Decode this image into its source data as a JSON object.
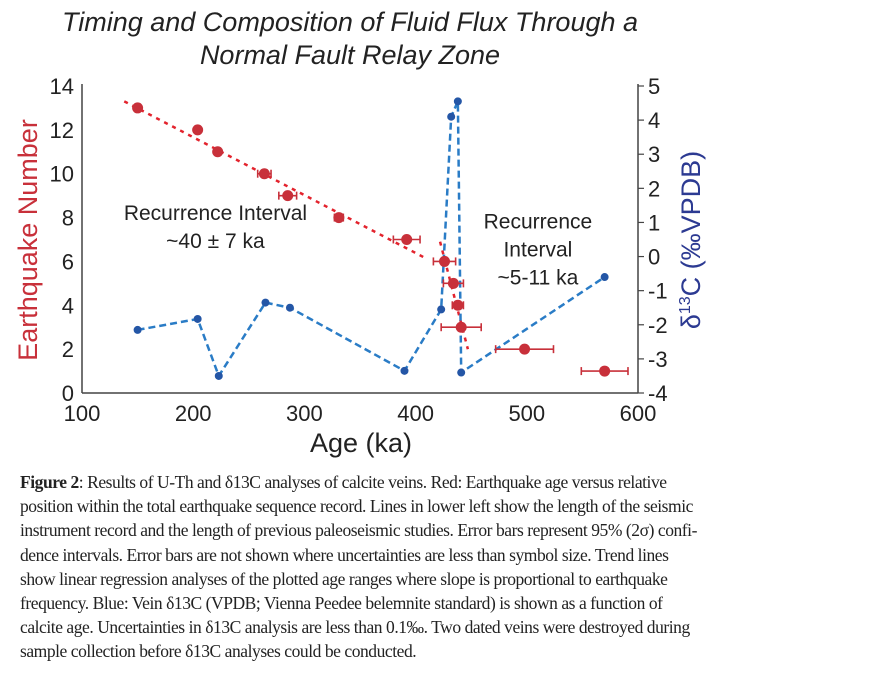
{
  "chart_data": {
    "type": "scatter",
    "title": "Timing and Composition of Fluid Flux Through a Normal Fault Relay Zone",
    "title_lines": [
      "Timing and Composition of Fluid Flux Through a",
      "Normal Fault Relay Zone"
    ],
    "xlabel": "Age (ka)",
    "ylabel": "Earthquake Number",
    "y2label": "δ13C (‰VPDB)",
    "y2label_parts": {
      "delta": "δ",
      "sup": "13",
      "rest": "C (‰VPDB)"
    },
    "xlim": [
      100,
      600
    ],
    "ylim": [
      0,
      14
    ],
    "y2lim": [
      -4,
      5
    ],
    "xticks": [
      "100",
      "200",
      "300",
      "400",
      "500",
      "600"
    ],
    "yticks": [
      "0",
      "2",
      "4",
      "6",
      "8",
      "10",
      "12",
      "14"
    ],
    "y2ticks": [
      "-4",
      "-3",
      "-2",
      "-1",
      "0",
      "1",
      "2",
      "3",
      "4",
      "5"
    ],
    "grid": false,
    "colors": {
      "red": "#c8303a",
      "red_trend": "#e3232d",
      "blue_point": "#2456a6",
      "blue_line": "#2a7cc6",
      "y2label": "#2c3a92"
    },
    "series": [
      {
        "name": "Earthquake age (red)",
        "axis": "left",
        "points": [
          {
            "x": 150,
            "y": 13,
            "err": 0
          },
          {
            "x": 204,
            "y": 12,
            "err": 0
          },
          {
            "x": 222,
            "y": 11,
            "err": 0
          },
          {
            "x": 264,
            "y": 10,
            "err": 6
          },
          {
            "x": 285,
            "y": 9,
            "err": 8
          },
          {
            "x": 331,
            "y": 8,
            "err": 4
          },
          {
            "x": 392,
            "y": 7,
            "err": 12
          },
          {
            "x": 426,
            "y": 6,
            "err": 10
          },
          {
            "x": 434,
            "y": 5,
            "err": 9
          },
          {
            "x": 438,
            "y": 4,
            "err": 5
          },
          {
            "x": 441,
            "y": 3,
            "err": 18
          },
          {
            "x": 498,
            "y": 2,
            "err": 26
          },
          {
            "x": 570,
            "y": 1,
            "err": 21
          }
        ]
      },
      {
        "name": "Vein δ13C (blue)",
        "axis": "right",
        "points": [
          {
            "x": 150,
            "y": -2.15
          },
          {
            "x": 204,
            "y": -1.83
          },
          {
            "x": 223,
            "y": -3.5
          },
          {
            "x": 265,
            "y": -1.35
          },
          {
            "x": 287,
            "y": -1.5
          },
          {
            "x": 390,
            "y": -3.35
          },
          {
            "x": 423,
            "y": -1.55
          },
          {
            "x": 432,
            "y": 4.1
          },
          {
            "x": 438,
            "y": 4.55
          },
          {
            "x": 441,
            "y": -3.4
          },
          {
            "x": 570,
            "y": -0.6
          }
        ]
      }
    ],
    "trend_lines": [
      {
        "name": "trend-40ka",
        "from": [
          138,
          13.3
        ],
        "to": [
          407,
          6.2
        ]
      },
      {
        "name": "trend-5-11ka",
        "from": [
          422,
          6.9
        ],
        "to": [
          447,
          2.0
        ]
      }
    ],
    "annotations": [
      {
        "lines": [
          "Recurrence Interval",
          "~40 ± 7 ka"
        ],
        "at": [
          220,
          7.9
        ]
      },
      {
        "lines": [
          "Recurrence",
          "Interval",
          "~5-11 ka"
        ],
        "at": [
          510,
          7.5
        ]
      }
    ]
  },
  "caption": {
    "label": "Figure 2",
    "lines": [
      ": Results of U-Th and δ13C analyses of calcite veins. Red: Earthquake age versus relative",
      "position within the total earthquake sequence record. Lines in lower left show the length of the seismic",
      "instrument record and the length of previous paleoseismic studies. Error bars represent 95% (2σ) confi-",
      "dence intervals. Error bars are not shown where uncertainties are less than symbol size. Trend lines",
      "show linear regression analyses of the plotted age ranges where slope is proportional to earthquake",
      "frequency. Blue: Vein δ13C (VPDB; Vienna Peedee belemnite standard) is shown as a function of",
      "calcite age. Uncertainties in δ13C analysis are less than 0.1‰. Two dated veins were destroyed during",
      "sample collection before δ13C analyses could be conducted."
    ]
  }
}
